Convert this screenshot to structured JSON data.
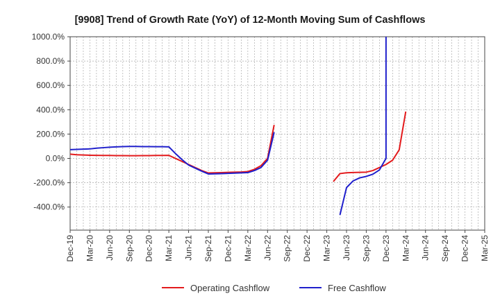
{
  "chart_data": {
    "type": "line",
    "title": "[9908]  Trend of Growth Rate (YoY) of 12-Month Moving Sum of Cashflows",
    "xlabel": "",
    "ylabel": "",
    "ylim": [
      -600,
      1000
    ],
    "yticks": [
      {
        "value": 1000,
        "label": "1000.0%"
      },
      {
        "value": 800,
        "label": "800.0%"
      },
      {
        "value": 600,
        "label": "600.0%"
      },
      {
        "value": 400,
        "label": "400.0%"
      },
      {
        "value": 200,
        "label": "200.0%"
      },
      {
        "value": 0,
        "label": "0.0%"
      },
      {
        "value": -200,
        "label": "-200.0%"
      },
      {
        "value": -400,
        "label": "-400.0%"
      }
    ],
    "xticks": [
      "Dec-19",
      "Mar-20",
      "Jun-20",
      "Sep-20",
      "Dec-20",
      "Mar-21",
      "Jun-21",
      "Sep-21",
      "Dec-21",
      "Mar-22",
      "Jun-22",
      "Sep-22",
      "Dec-22",
      "Mar-23",
      "Jun-23",
      "Sep-23",
      "Dec-23",
      "Mar-24",
      "Jun-24",
      "Sep-24",
      "Dec-24",
      "Mar-25"
    ],
    "grid": true,
    "legend_position": "bottom",
    "series": [
      {
        "name": "Operating Cashflow",
        "color": "#e31a1c",
        "points": [
          [
            "2019-12",
            35
          ],
          [
            "2020-01",
            30
          ],
          [
            "2020-02",
            28
          ],
          [
            "2020-03",
            26
          ],
          [
            "2020-04",
            25
          ],
          [
            "2020-05",
            24
          ],
          [
            "2020-06",
            24
          ],
          [
            "2020-07",
            23
          ],
          [
            "2020-08",
            23
          ],
          [
            "2020-09",
            22
          ],
          [
            "2020-10",
            22
          ],
          [
            "2020-11",
            23
          ],
          [
            "2020-12",
            23
          ],
          [
            "2021-01",
            24
          ],
          [
            "2021-02",
            24
          ],
          [
            "2021-03",
            25
          ],
          [
            "2021-04",
            0
          ],
          [
            "2021-05",
            -25
          ],
          [
            "2021-06",
            -50
          ],
          [
            "2021-07",
            -75
          ],
          [
            "2021-08",
            -100
          ],
          [
            "2021-09",
            -120
          ],
          [
            "2021-10",
            -118
          ],
          [
            "2021-11",
            -117
          ],
          [
            "2021-12",
            -115
          ],
          [
            "2022-01",
            -113
          ],
          [
            "2022-02",
            -112
          ],
          [
            "2022-03",
            -108
          ],
          [
            "2022-04",
            -90
          ],
          [
            "2022-05",
            -60
          ],
          [
            "2022-06",
            0
          ],
          [
            "2022-07",
            275
          ],
          null,
          [
            "2023-04",
            -190
          ],
          [
            "2023-05",
            -125
          ],
          [
            "2023-06",
            -118
          ],
          [
            "2023-07",
            -116
          ],
          [
            "2023-08",
            -115
          ],
          [
            "2023-09",
            -113
          ],
          [
            "2023-10",
            -100
          ],
          [
            "2023-11",
            -75
          ],
          [
            "2023-12",
            -50
          ],
          [
            "2024-01",
            -15
          ],
          [
            "2024-02",
            70
          ],
          [
            "2024-03",
            385
          ]
        ]
      },
      {
        "name": "Free Cashflow",
        "color": "#1f1fcc",
        "points": [
          [
            "2019-12",
            72
          ],
          [
            "2020-01",
            74
          ],
          [
            "2020-02",
            76
          ],
          [
            "2020-03",
            78
          ],
          [
            "2020-04",
            84
          ],
          [
            "2020-05",
            88
          ],
          [
            "2020-06",
            92
          ],
          [
            "2020-07",
            95
          ],
          [
            "2020-08",
            97
          ],
          [
            "2020-09",
            98
          ],
          [
            "2020-10",
            98
          ],
          [
            "2020-11",
            97
          ],
          [
            "2020-12",
            97
          ],
          [
            "2021-01",
            96
          ],
          [
            "2021-02",
            96
          ],
          [
            "2021-03",
            95
          ],
          [
            "2021-04",
            40
          ],
          [
            "2021-05",
            -10
          ],
          [
            "2021-06",
            -55
          ],
          [
            "2021-07",
            -80
          ],
          [
            "2021-08",
            -105
          ],
          [
            "2021-09",
            -128
          ],
          [
            "2021-10",
            -127
          ],
          [
            "2021-11",
            -125
          ],
          [
            "2021-12",
            -123
          ],
          [
            "2022-01",
            -121
          ],
          [
            "2022-02",
            -119
          ],
          [
            "2022-03",
            -117
          ],
          [
            "2022-04",
            -100
          ],
          [
            "2022-05",
            -75
          ],
          [
            "2022-06",
            -15
          ],
          [
            "2022-07",
            215
          ],
          null,
          [
            "2023-05",
            -465
          ],
          [
            "2023-06",
            -240
          ],
          [
            "2023-07",
            -185
          ],
          [
            "2023-08",
            -160
          ],
          [
            "2023-09",
            -148
          ],
          [
            "2023-10",
            -130
          ],
          [
            "2023-11",
            -95
          ],
          [
            "2023-12",
            0
          ],
          [
            "2023-12",
            1000
          ]
        ]
      }
    ]
  }
}
